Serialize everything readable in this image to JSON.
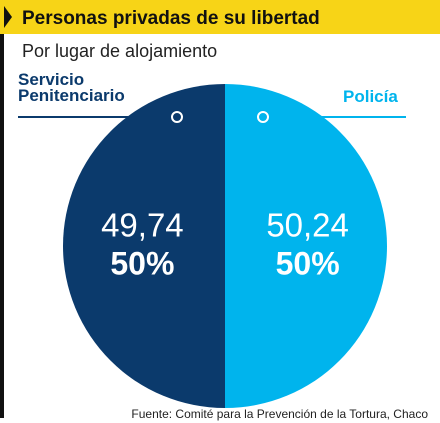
{
  "chart_data": {
    "type": "pie",
    "title": "Personas privadas de su libertad",
    "subtitle": "Por lugar de alojamiento",
    "categories": [
      "Servicio Penitenciario",
      "Policía"
    ],
    "values": [
      49.74,
      50.24
    ],
    "value_labels": [
      "49,74",
      "50,24"
    ],
    "percents": [
      50,
      50
    ],
    "percent_labels": [
      "50%",
      "50%"
    ],
    "colors": [
      "#0b3a6c",
      "#00b4ed"
    ],
    "source": "Fuente: Comité para la Prevención de la Tortura, Chaco"
  }
}
